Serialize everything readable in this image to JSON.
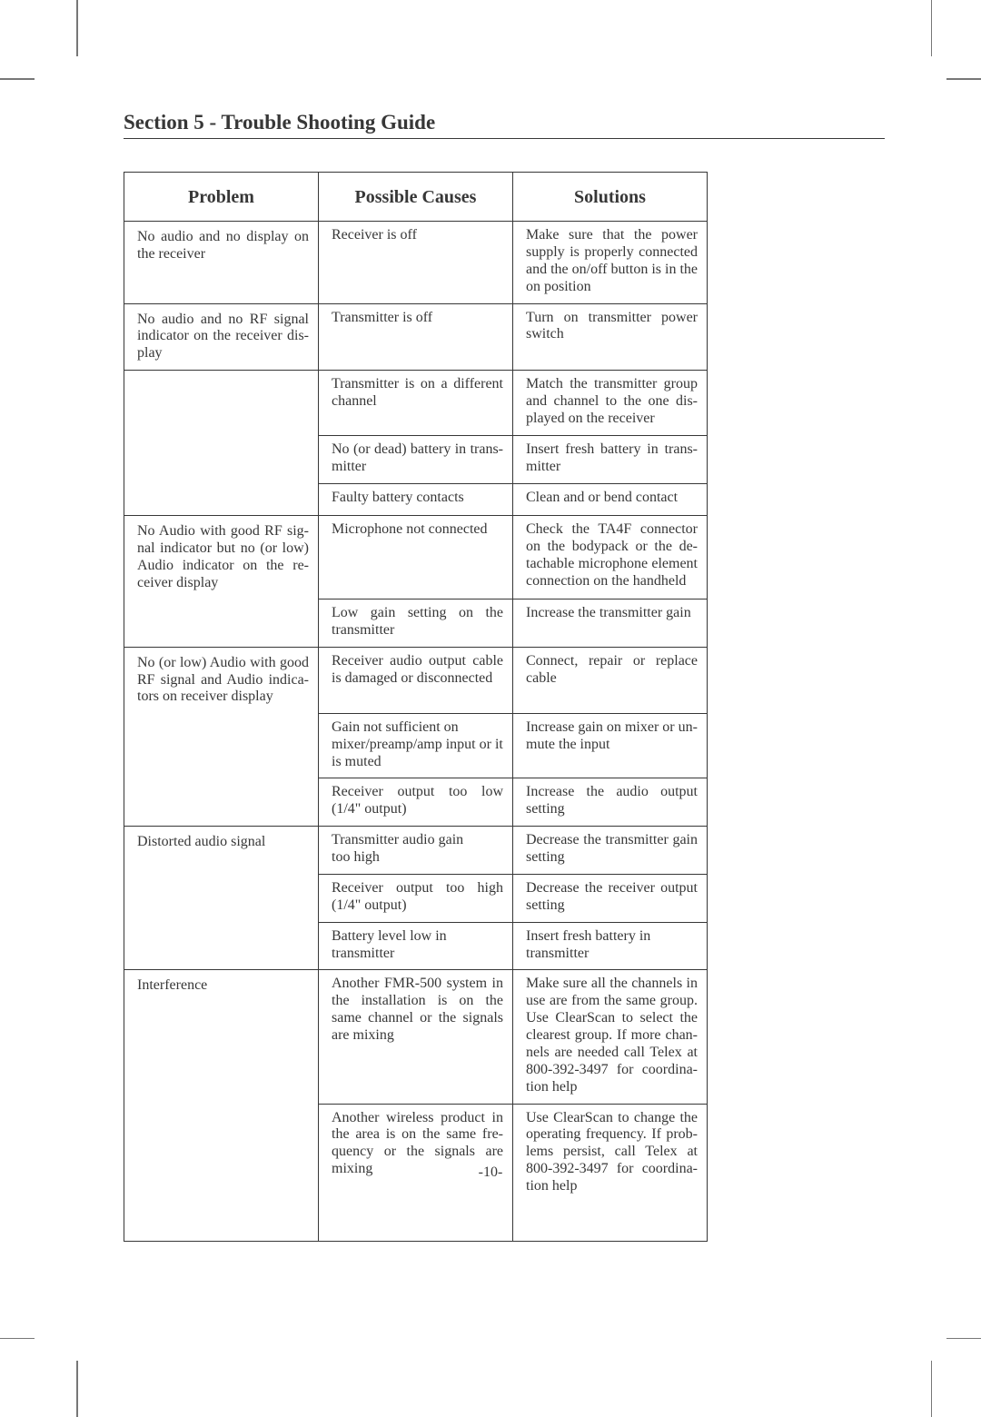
{
  "section_title": "Section 5 - Trouble Shooting Guide",
  "page_number": "-10-",
  "columns": {
    "c1": "Problem",
    "c2": "Possible Causes",
    "c3": "Solutions"
  },
  "rows": [
    {
      "problem": "No audio and no display on the receiver",
      "cause": "Receiver is off",
      "solution": "Make sure that the power supply is properly connected and the on/off button is in the on position",
      "pfirst": true
    },
    {
      "problem": "No audio and no RF signal indicator on the receiver dis­play",
      "cause": "Transmitter is off",
      "solution": "Turn on transmitter power switch",
      "pfirst": true
    },
    {
      "problem": "",
      "cause": "Transmitter is on a different channel",
      "solution": "Match the transmitter group and channel to the one dis­played on the receiver",
      "pfirst": true
    },
    {
      "problem": "",
      "cause": "No (or dead) battery in trans­mitter",
      "solution": "Insert fresh battery in trans­mitter"
    },
    {
      "problem": "",
      "cause": "Faulty battery contacts",
      "solution": "Clean and or bend contact"
    },
    {
      "problem": "No Audio with good RF sig­nal indicator but no (or low) Audio indicator on the re­ceiver display",
      "cause": "Microphone not connected",
      "solution": "Check the TA4F connector on the bodypack or the de­tachable microphone element connection on the handheld",
      "pfirst": true
    },
    {
      "problem": "",
      "cause": "Low gain setting on the transmitter",
      "solution": "Increase the transmitter gain"
    },
    {
      "problem": "No (or low) Audio with good RF signal and Audio indica­tors on receiver display",
      "cause": "Receiver audio output cable is damaged or disconnected",
      "solution": "Connect, repair or replace cable",
      "pfirst": true
    },
    {
      "problem": "",
      "cause": "Gain not sufficient on mixer/preamp/amp input or it is muted",
      "solution": "Increase gain on mixer or un-mute the input",
      "cause_nojust": true
    },
    {
      "problem": "",
      "cause": "Receiver output too low (1/4\" output)",
      "solution": "Increase the audio output setting"
    },
    {
      "problem": "Distorted audio signal",
      "cause": "Transmitter audio gain too high",
      "solution": "Decrease the transmitter gain setting",
      "pfirst": true,
      "cause_nojust": true
    },
    {
      "problem": "",
      "cause": "Receiver output too high (1/4\" output)",
      "solution": "Decrease the receiver output setting"
    },
    {
      "problem": "",
      "cause": "Battery level low in transmitter",
      "solution": "Insert fresh battery in transmitter",
      "cause_nojust": true,
      "sol_nojust": true
    },
    {
      "problem": "Interference",
      "cause": "Another FMR-500 system in the installation is on the same channel or the signals are mixing",
      "solution": "Make sure all the channels in use are from the same group. Use ClearScan to select the clearest group. If more chan­nels are needed call Telex at 800-392-3497 for coordina­tion help",
      "pfirst": true
    },
    {
      "problem": "",
      "cause": "Another wireless product in the area is on the same fre­quency or the signals are mixing",
      "solution": "Use ClearScan to change the operating frequency. If prob­lems persist, call Telex at 800-392-3497 for coordina­tion help",
      "plast": true,
      "tall": true
    }
  ]
}
